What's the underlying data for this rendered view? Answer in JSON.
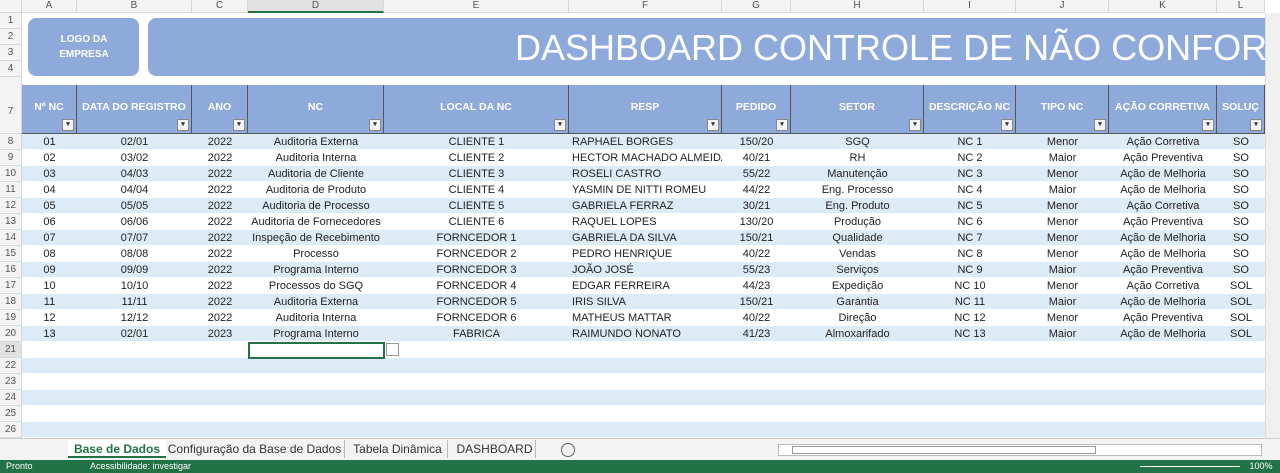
{
  "columns": [
    "A",
    "B",
    "C",
    "D",
    "E",
    "F",
    "G",
    "H",
    "I",
    "J",
    "K",
    "L"
  ],
  "row_numbers": [
    1,
    2,
    3,
    4,
    7,
    8,
    9,
    10,
    11,
    12,
    13,
    14,
    15,
    16,
    17,
    18,
    19,
    20,
    21,
    22,
    23,
    24,
    25,
    26
  ],
  "logo": "LOGO DA EMPRESA",
  "title": "DASHBOARD CONTROLE DE NÃO CONFORMID",
  "table": {
    "header": [
      "Nº NC",
      "DATA DO REGISTRO",
      "ANO",
      "NC",
      "LOCAL DA NC",
      "RESP",
      "PEDIDO",
      "SETOR",
      "DESCRIÇÃO NC",
      "TIPO NC",
      "AÇÃO CORRETIVA",
      "SOLUÇ"
    ],
    "rows": [
      [
        "01",
        "02/01",
        "2022",
        "Auditoria Externa",
        "CLIENTE 1",
        "RAPHAEL BORGES",
        "150/20",
        "SGQ",
        "NC 1",
        "Menor",
        "Ação Corretiva",
        "SO"
      ],
      [
        "02",
        "03/02",
        "2022",
        "Auditoria Interna",
        "CLIENTE 2",
        "HECTOR MACHADO ALMEIDA",
        "40/21",
        "RH",
        "NC 2",
        "Maior",
        "Ação Preventiva",
        "SO"
      ],
      [
        "03",
        "04/03",
        "2022",
        "Auditoria de Cliente",
        "CLIENTE 3",
        "ROSELI CASTRO",
        "55/22",
        "Manutenção",
        "NC 3",
        "Menor",
        "Ação de Melhoria",
        "SO"
      ],
      [
        "04",
        "04/04",
        "2022",
        "Auditoria de Produto",
        "CLIENTE 4",
        "YASMIN DE NITTI ROMEU",
        "44/22",
        "Eng. Processo",
        "NC 4",
        "Maior",
        "Ação de Melhoria",
        "SO"
      ],
      [
        "05",
        "05/05",
        "2022",
        "Auditoria de Processo",
        "CLIENTE 5",
        "GABRIELA FERRAZ",
        "30/21",
        "Eng. Produto",
        "NC 5",
        "Menor",
        "Ação Corretiva",
        "SO"
      ],
      [
        "06",
        "06/06",
        "2022",
        "Auditoria de Fornecedores",
        "CLIENTE 6",
        "RAQUEL LOPES",
        "130/20",
        "Produção",
        "NC 6",
        "Menor",
        "Ação Preventiva",
        "SO"
      ],
      [
        "07",
        "07/07",
        "2022",
        "Inspeção de Recebimento",
        "FORNCEDOR 1",
        "GABRIELA DA SILVA",
        "150/21",
        "Qualidade",
        "NC 7",
        "Menor",
        "Ação de Melhoria",
        "SO"
      ],
      [
        "08",
        "08/08",
        "2022",
        "Processo",
        "FORNCEDOR 2",
        "PEDRO HENRIQUE",
        "40/22",
        "Vendas",
        "NC 8",
        "Menor",
        "Ação de Melhoria",
        "SO"
      ],
      [
        "09",
        "09/09",
        "2022",
        "Programa Interno",
        "FORNCEDOR 3",
        "JOÃO JOSÉ",
        "55/23",
        "Serviços",
        "NC 9",
        "Maior",
        "Ação Preventiva",
        "SO"
      ],
      [
        "10",
        "10/10",
        "2022",
        "Processos do SGQ",
        "FORNCEDOR 4",
        "EDGAR FERREIRA",
        "44/23",
        "Expedição",
        "NC 10",
        "Menor",
        "Ação Corretiva",
        "SOL"
      ],
      [
        "11",
        "11/11",
        "2022",
        "Auditoria Externa",
        "FORNCEDOR 5",
        "IRIS SILVA",
        "150/21",
        "Garantia",
        "NC 11",
        "Maior",
        "Ação de Melhoria",
        "SOL"
      ],
      [
        "12",
        "12/12",
        "2022",
        "Auditoria Interna",
        "FORNCEDOR 6",
        "MATHEUS MATTAR",
        "40/22",
        "Direção",
        "NC 12",
        "Menor",
        "Ação Preventiva",
        "SOL"
      ],
      [
        "13",
        "02/01",
        "2023",
        "Programa Interno",
        "FABRICA",
        "RAIMUNDO NONATO",
        "41/23",
        "Almoxarifado",
        "NC 13",
        "Maior",
        "Ação de Melhoria",
        "SOL"
      ]
    ]
  },
  "sheet_tabs": [
    "Base de Dados",
    "Configuração da Base de Dados",
    "Tabela Dinâmica",
    "DASHBOARD"
  ],
  "status": {
    "left": "Pronto",
    "accessibility": "Acessibilidade: investigar",
    "zoom": "100%"
  }
}
